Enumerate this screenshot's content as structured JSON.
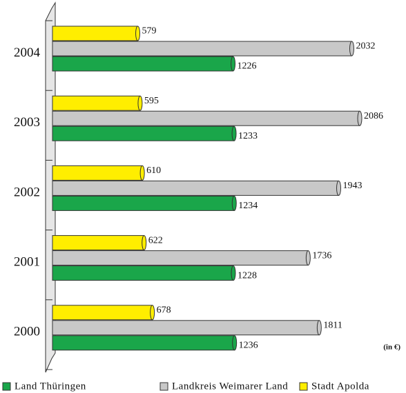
{
  "chart_data": {
    "type": "bar",
    "orientation": "horizontal",
    "categories": [
      "2004",
      "2003",
      "2002",
      "2001",
      "2000"
    ],
    "series": [
      {
        "name": "Land Thüringen",
        "color": "#1aa64a",
        "values": [
          1226,
          1233,
          1234,
          1228,
          1236
        ]
      },
      {
        "name": "Landkreis Weimarer Land",
        "color": "#c8c8c8",
        "values": [
          2032,
          2086,
          1943,
          1736,
          1811
        ]
      },
      {
        "name": "Stadt Apolda",
        "color": "#ffee00",
        "values": [
          579,
          595,
          610,
          622,
          678
        ]
      }
    ],
    "xlim": [
      0,
      2400
    ],
    "annotation": "(in €)",
    "legend": "bottom"
  }
}
